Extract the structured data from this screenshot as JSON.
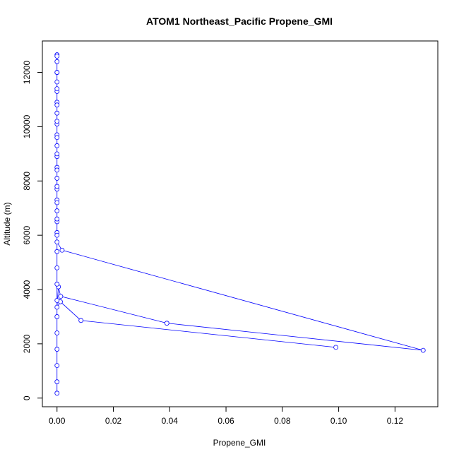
{
  "chart_data": {
    "type": "line",
    "title": "ATOM1 Northeast_Pacific Propene_GMI",
    "x_label": "Propene_GMI",
    "y_label": "Altitude (m)",
    "x": [
      0.099,
      0.0085,
      0.0012,
      0,
      0.0005,
      0.0013,
      0.039,
      0.13,
      0.0018,
      0,
      0,
      0,
      0,
      0,
      0,
      0,
      0,
      0,
      0,
      0,
      0,
      0,
      0,
      0,
      0,
      0,
      0,
      0,
      0,
      0,
      0,
      0,
      0,
      0,
      0,
      0,
      0,
      0,
      0,
      0,
      0,
      0,
      0,
      0,
      0,
      0,
      0,
      0,
      0,
      0
    ],
    "series": [
      {
        "color": "#0000ff",
        "values": [
          1870,
          2860,
          3550,
          3350,
          4100,
          3750,
          2760,
          1760,
          5450,
          5750,
          6100,
          6500,
          6900,
          7300,
          7700,
          8100,
          8500,
          8900,
          9300,
          9700,
          10100,
          10500,
          10900,
          11300,
          11650,
          12000,
          12400,
          12650,
          12600,
          12000,
          11400,
          10800,
          10200,
          9600,
          9000,
          8400,
          7800,
          7200,
          6600,
          6000,
          5400,
          4800,
          4200,
          3600,
          3000,
          2400,
          1800,
          1200,
          600,
          180
        ]
      }
    ],
    "xlim": [
      -0.0052,
      0.1352
    ],
    "ylim": [
      -319,
      13159
    ],
    "xticks": [
      {
        "value": 0,
        "label": "0.00"
      },
      {
        "value": 0.02,
        "label": "0.02"
      },
      {
        "value": 0.04,
        "label": "0.04"
      },
      {
        "value": 0.06,
        "label": "0.06"
      },
      {
        "value": 0.08,
        "label": "0.08"
      },
      {
        "value": 0.1,
        "label": "0.10"
      },
      {
        "value": 0.12,
        "label": "0.12"
      }
    ],
    "yticks": [
      0,
      2000,
      4000,
      6000,
      8000,
      10000,
      12000
    ]
  }
}
